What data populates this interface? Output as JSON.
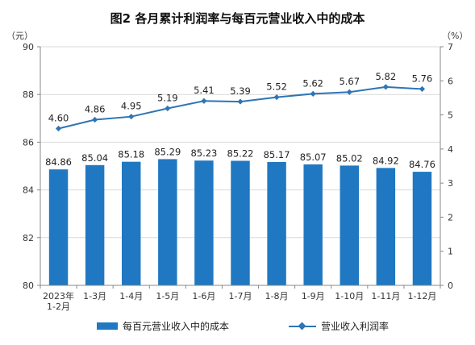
{
  "chart_data": {
    "type": "bar+line",
    "title": "图2  各月累计利润率与每百元营业收入中的成本",
    "categories": [
      "2023年\n1-2月",
      "1-3月",
      "1-4月",
      "1-5月",
      "1-6月",
      "1-7月",
      "1-8月",
      "1-9月",
      "1-10月",
      "1-11月",
      "1-12月"
    ],
    "series": [
      {
        "name": "每百元营业收入中的成本",
        "type": "bar",
        "axis": "left",
        "color": "#1f78c1",
        "values": [
          84.86,
          85.04,
          85.18,
          85.29,
          85.23,
          85.22,
          85.17,
          85.07,
          85.02,
          84.92,
          84.76
        ],
        "labels": [
          "84.86",
          "85.04",
          "85.18",
          "85.29",
          "85.23",
          "85.22",
          "85.17",
          "85.07",
          "85.02",
          "84.92",
          "84.76"
        ]
      },
      {
        "name": "营业收入利润率",
        "type": "line",
        "axis": "right",
        "color": "#2e75b6",
        "values": [
          4.6,
          4.86,
          4.95,
          5.19,
          5.41,
          5.39,
          5.52,
          5.62,
          5.67,
          5.82,
          5.76
        ],
        "labels": [
          "4.60",
          "4.86",
          "4.95",
          "5.19",
          "5.41",
          "5.39",
          "5.52",
          "5.62",
          "5.67",
          "5.82",
          "5.76"
        ]
      }
    ],
    "y_left": {
      "unit": "（元）",
      "min": 80,
      "max": 90,
      "ticks": [
        80,
        82,
        84,
        86,
        88,
        90
      ]
    },
    "y_right": {
      "unit": "（%）",
      "min": 0,
      "max": 7,
      "ticks": [
        0,
        1,
        2,
        3,
        4,
        5,
        6,
        7
      ]
    },
    "grid": true,
    "legend_position": "bottom"
  }
}
